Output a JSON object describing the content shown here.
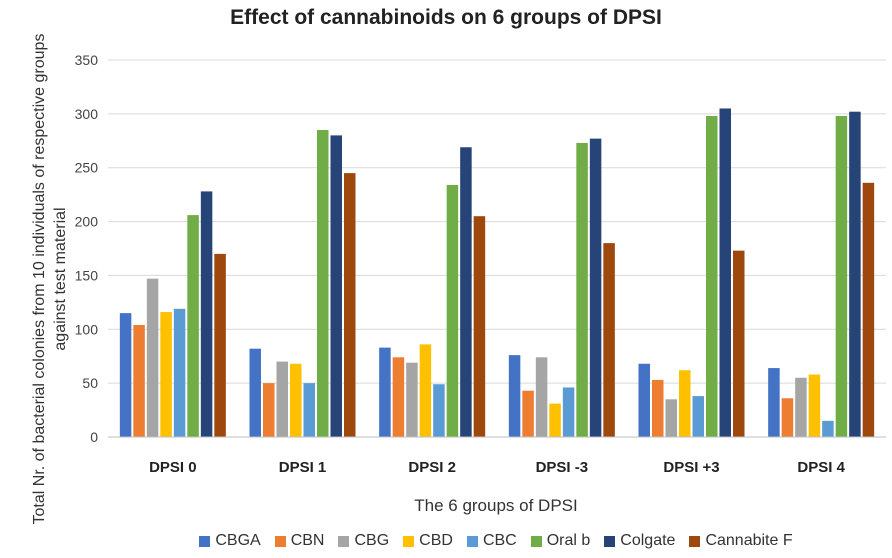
{
  "chart_data": {
    "type": "bar",
    "title": "Effect of cannabinoids on 6 groups of DPSI",
    "xlabel": "The 6 groups of DPSI",
    "ylabel": "Total Nr. of bacterial colonies from 10 individuals of respective groups against test material",
    "ylim": [
      0,
      350
    ],
    "yticks": [
      0,
      50,
      100,
      150,
      200,
      250,
      300,
      350
    ],
    "grid": true,
    "legend_position": "bottom",
    "categories": [
      "DPSI 0",
      "DPSI 1",
      "DPSI 2",
      "DPSI -3",
      "DPSI +3",
      "DPSI 4"
    ],
    "series": [
      {
        "name": "CBGA",
        "color": "#4472C4",
        "values": [
          115,
          82,
          83,
          76,
          68,
          64
        ]
      },
      {
        "name": "CBN",
        "color": "#ED7D31",
        "values": [
          104,
          50,
          74,
          43,
          53,
          36
        ]
      },
      {
        "name": "CBG",
        "color": "#A5A5A5",
        "values": [
          147,
          70,
          69,
          74,
          35,
          55
        ]
      },
      {
        "name": "CBD",
        "color": "#FFC000",
        "values": [
          116,
          68,
          86,
          31,
          62,
          58
        ]
      },
      {
        "name": "CBC",
        "color": "#5B9BD5",
        "values": [
          119,
          50,
          49,
          46,
          38,
          15
        ]
      },
      {
        "name": "Oral b",
        "color": "#70AD47",
        "values": [
          206,
          285,
          234,
          273,
          298,
          298
        ]
      },
      {
        "name": "Colgate",
        "color": "#264478",
        "values": [
          228,
          280,
          269,
          277,
          305,
          302
        ]
      },
      {
        "name": "Cannabite F",
        "color": "#9E480E",
        "values": [
          170,
          245,
          205,
          180,
          173,
          236
        ]
      }
    ]
  }
}
